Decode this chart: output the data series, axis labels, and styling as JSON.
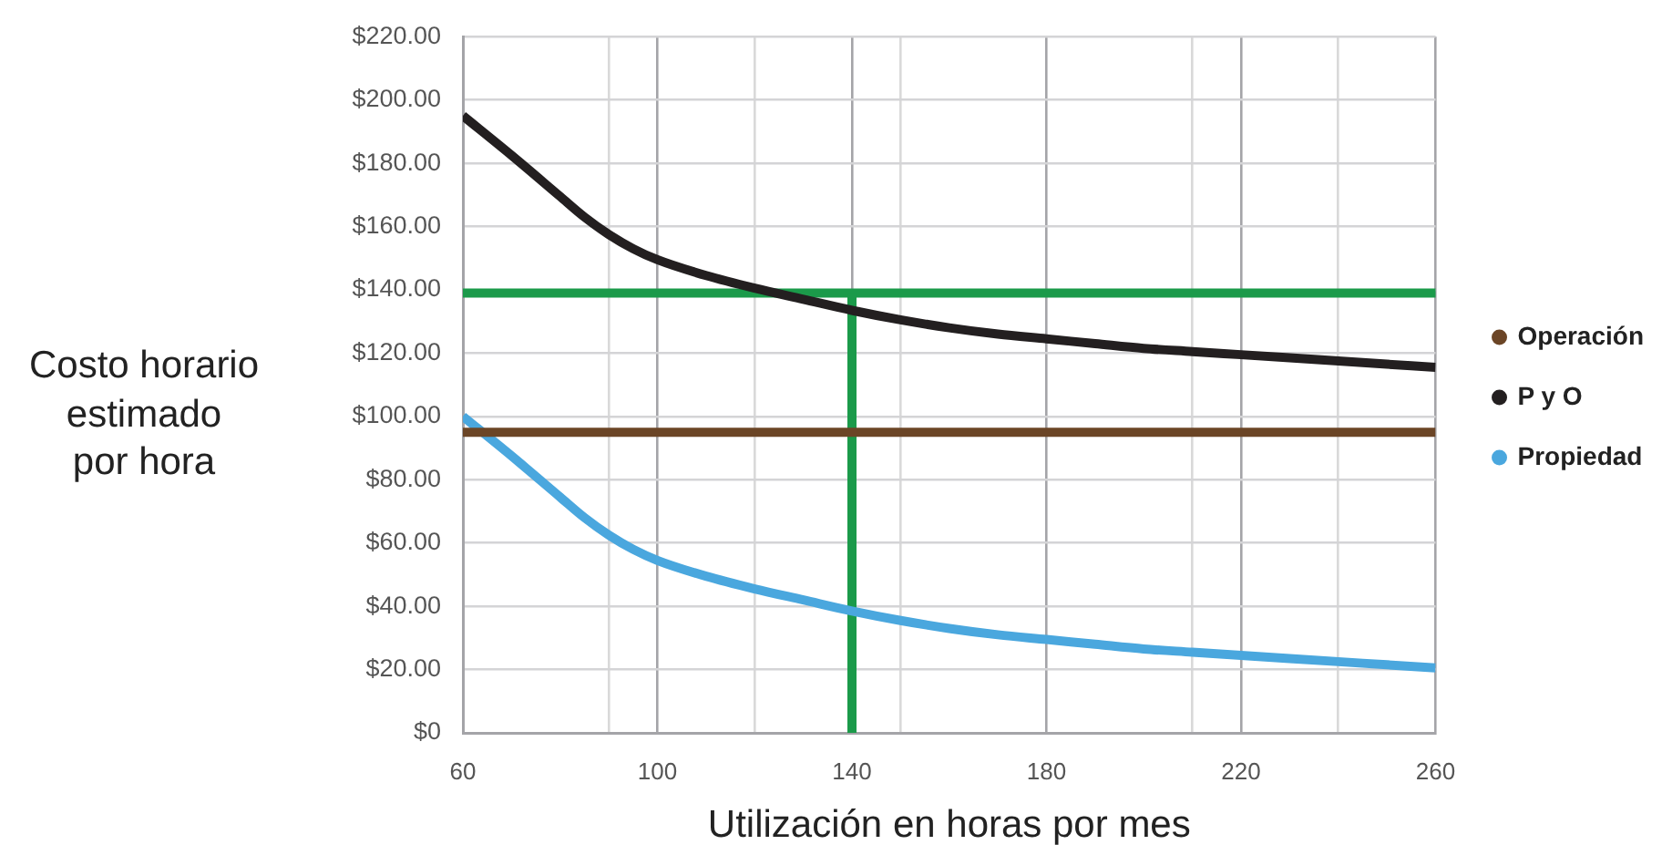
{
  "chart_data": {
    "type": "line",
    "xlabel": "Utilización en horas por mes",
    "ylabel": "Costo horario\nestimado\npor hora",
    "x": [
      60,
      70,
      80,
      85,
      90,
      95,
      100,
      110,
      120,
      130,
      140,
      150,
      160,
      170,
      180,
      190,
      200,
      210,
      220,
      230,
      240,
      250,
      260
    ],
    "series": [
      {
        "name": "Operación",
        "color": "#6b4526",
        "x": [
          60,
          260
        ],
        "values": [
          95,
          95
        ]
      },
      {
        "name": "P y O",
        "color": "#231f20",
        "values": [
          195,
          182.5,
          169.5,
          163,
          157.5,
          153,
          149.5,
          144.5,
          140.5,
          137,
          133.5,
          130.5,
          128,
          126,
          124.5,
          123,
          121.5,
          120.5,
          119.5,
          118.5,
          117.5,
          116.5,
          115.5
        ]
      },
      {
        "name": "Propiedad",
        "color": "#4aa7de",
        "values": [
          100,
          87.5,
          74.5,
          68,
          62.5,
          58,
          54.5,
          49.5,
          45.5,
          42,
          38.5,
          35.5,
          33,
          31,
          29.5,
          28,
          26.5,
          25.5,
          24.5,
          23.5,
          22.5,
          21.5,
          20.5
        ]
      },
      {
        "color": "#1b9a4a",
        "x": [
          140,
          140
        ],
        "values": [
          0,
          139
        ]
      }
    ],
    "xlim": [
      60,
      260
    ],
    "xticks": [
      60,
      {
        "value": 90,
        "label": null
      },
      100,
      {
        "value": 120,
        "label": null
      },
      140,
      {
        "value": 150,
        "label": null
      },
      180,
      {
        "value": 210,
        "label": null
      },
      220,
      {
        "value": 240,
        "label": null
      },
      260
    ],
    "ylim": [
      0,
      220
    ],
    "yticks": [
      {
        "value": 0,
        "label": "$0"
      },
      {
        "value": 20,
        "label": "$20.00"
      },
      {
        "value": 40,
        "label": "$40.00"
      },
      {
        "value": 60,
        "label": "$60.00"
      },
      {
        "value": 80,
        "label": "$80.00"
      },
      {
        "value": 100,
        "label": "$100.00"
      },
      {
        "value": 120,
        "label": "$120.00"
      },
      {
        "value": 140,
        "label": "$140.00"
      },
      {
        "value": 160,
        "label": "$160.00"
      },
      {
        "value": 180,
        "label": "$180.00"
      },
      {
        "value": 200,
        "label": "$200.00"
      },
      {
        "value": 220,
        "label": "$220.00"
      }
    ],
    "ref_lines": [
      {
        "axis": "y",
        "value": 139,
        "color": "#1b9a4a"
      }
    ],
    "grid": true,
    "legend": "right",
    "marker": "none"
  }
}
